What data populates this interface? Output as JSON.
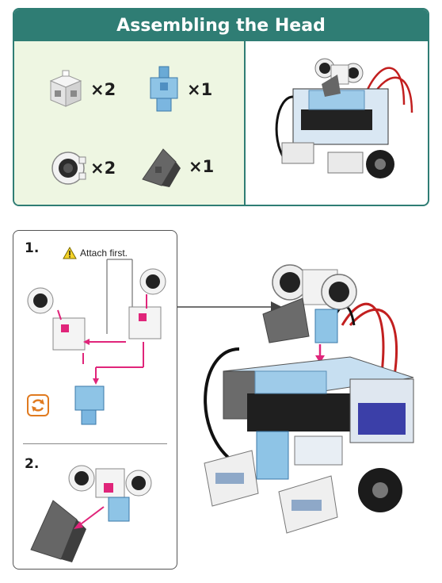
{
  "header": {
    "title": "Assembling the Head"
  },
  "parts": [
    {
      "icon": "white-cube-block-icon",
      "qty": "×2"
    },
    {
      "icon": "blue-connector-block-icon",
      "qty": "×1"
    },
    {
      "icon": "ultrasonic-eye-icon",
      "qty": "×2"
    },
    {
      "icon": "gray-wedge-block-icon",
      "qty": "×1"
    }
  ],
  "steps": [
    {
      "number": "1.",
      "note": "Attach first.",
      "note_icon": "warning-triangle-icon",
      "extra_icon": "rotate-icon"
    },
    {
      "number": "2."
    }
  ],
  "colors": {
    "accent": "#2f7d74",
    "parts_bg": "#eef6e2",
    "arrow": "#e0257a",
    "rotate": "#e07a1f",
    "block_blue": "#8ec4e6",
    "block_gray": "#6b6b6b"
  }
}
